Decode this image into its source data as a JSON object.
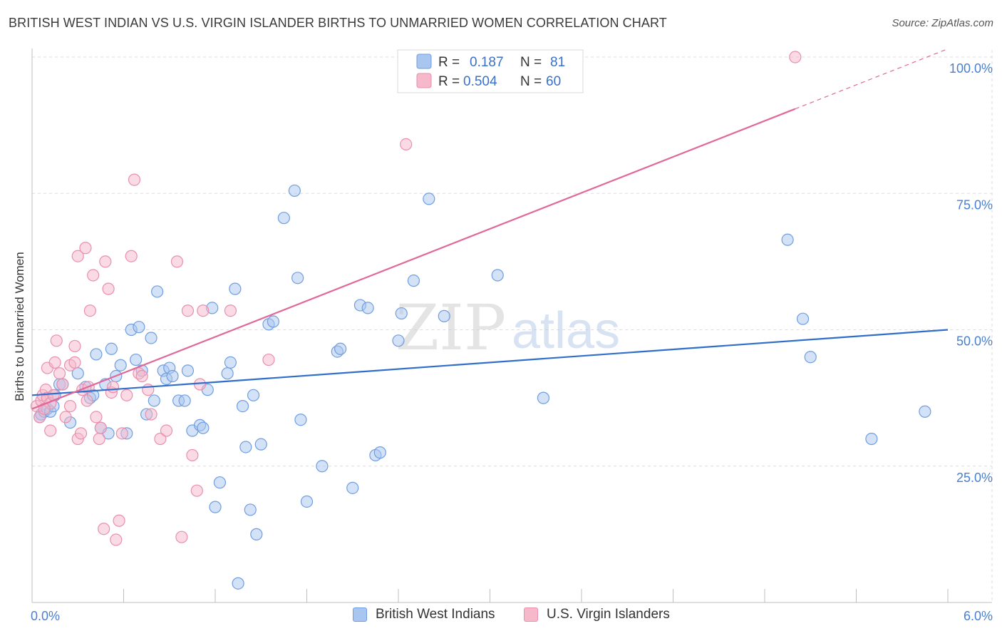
{
  "title": "BRITISH WEST INDIAN VS U.S. VIRGIN ISLANDER BIRTHS TO UNMARRIED WOMEN CORRELATION CHART",
  "source": "Source: ZipAtlas.com",
  "watermark": {
    "zip": "ZIP",
    "atlas": "atlas"
  },
  "colors": {
    "blue_fill": "#a9c6f0",
    "blue_stroke": "#6f9ee0",
    "blue_line": "#2f6fcb",
    "pink_fill": "#f6b8cb",
    "pink_stroke": "#ea8fac",
    "pink_line": "#e0699a",
    "grid": "#dddddd",
    "tick_text": "#4a7fd0"
  },
  "legend": {
    "rows": [
      {
        "r_label": "R =",
        "r_value": "0.187",
        "n_label": "N =",
        "n_value": "81"
      },
      {
        "r_label": "R =",
        "r_value": "0.504",
        "n_label": "N =",
        "n_value": "60"
      }
    ]
  },
  "bottom_legend": [
    "British West Indians",
    "U.S. Virgin Islanders"
  ],
  "chart_data": {
    "type": "scatter",
    "title": "BRITISH WEST INDIAN VS U.S. VIRGIN ISLANDER BIRTHS TO UNMARRIED WOMEN CORRELATION CHART",
    "xlabel": "",
    "ylabel": "Births to Unmarried Women",
    "xlim": [
      0,
      6.0
    ],
    "ylim": [
      0,
      100
    ],
    "x_tick_labels": [
      "0.0%",
      "6.0%"
    ],
    "y_ticks": [
      25,
      50,
      75,
      100
    ],
    "y_tick_labels": [
      "25.0%",
      "50.0%",
      "75.0%",
      "100.0%"
    ],
    "grid": true,
    "legend_position": "top-center",
    "series": [
      {
        "name": "British West Indians",
        "color": "blue",
        "R": 0.187,
        "N": 81,
        "trend": {
          "x": [
            0.0,
            6.0
          ],
          "y": [
            38.0,
            50.0
          ],
          "solid_to": 6.0
        },
        "points": [
          [
            0.05,
            34
          ],
          [
            0.06,
            34.5
          ],
          [
            0.08,
            35
          ],
          [
            0.1,
            35.5
          ],
          [
            0.12,
            35
          ],
          [
            0.14,
            36
          ],
          [
            0.15,
            38
          ],
          [
            0.18,
            40
          ],
          [
            0.2,
            40
          ],
          [
            0.25,
            33
          ],
          [
            0.3,
            42
          ],
          [
            0.35,
            39.5
          ],
          [
            0.38,
            37.5
          ],
          [
            0.4,
            38
          ],
          [
            0.42,
            45.5
          ],
          [
            0.45,
            32
          ],
          [
            0.48,
            40
          ],
          [
            0.5,
            31
          ],
          [
            0.52,
            46.5
          ],
          [
            0.55,
            41.5
          ],
          [
            0.58,
            43.5
          ],
          [
            0.62,
            31
          ],
          [
            0.65,
            50
          ],
          [
            0.68,
            44.5
          ],
          [
            0.7,
            50.5
          ],
          [
            0.72,
            42.5
          ],
          [
            0.75,
            34.5
          ],
          [
            0.78,
            48.5
          ],
          [
            0.8,
            37
          ],
          [
            0.82,
            57
          ],
          [
            0.86,
            42.5
          ],
          [
            0.88,
            41
          ],
          [
            0.9,
            43
          ],
          [
            0.92,
            41.5
          ],
          [
            0.96,
            37
          ],
          [
            1.0,
            37
          ],
          [
            1.02,
            42.5
          ],
          [
            1.05,
            31.5
          ],
          [
            1.1,
            32.5
          ],
          [
            1.12,
            32
          ],
          [
            1.15,
            39
          ],
          [
            1.18,
            54
          ],
          [
            1.2,
            17.5
          ],
          [
            1.23,
            22
          ],
          [
            1.28,
            42
          ],
          [
            1.3,
            44
          ],
          [
            1.33,
            57.5
          ],
          [
            1.35,
            3.5
          ],
          [
            1.38,
            36
          ],
          [
            1.4,
            28.5
          ],
          [
            1.43,
            17
          ],
          [
            1.45,
            38
          ],
          [
            1.47,
            12.5
          ],
          [
            1.5,
            29
          ],
          [
            1.55,
            51
          ],
          [
            1.58,
            51.5
          ],
          [
            1.65,
            70.5
          ],
          [
            1.72,
            75.5
          ],
          [
            1.74,
            59.5
          ],
          [
            1.76,
            33.5
          ],
          [
            1.8,
            18.5
          ],
          [
            1.9,
            25
          ],
          [
            2.0,
            46
          ],
          [
            2.02,
            46.5
          ],
          [
            2.1,
            21
          ],
          [
            2.15,
            54.5
          ],
          [
            2.2,
            54
          ],
          [
            2.25,
            27
          ],
          [
            2.28,
            27.5
          ],
          [
            2.4,
            48
          ],
          [
            2.42,
            53
          ],
          [
            2.5,
            59
          ],
          [
            2.6,
            74
          ],
          [
            2.7,
            52.5
          ],
          [
            3.05,
            60
          ],
          [
            3.35,
            37.5
          ],
          [
            4.95,
            66.5
          ],
          [
            5.05,
            52
          ],
          [
            5.1,
            45
          ],
          [
            5.5,
            30
          ],
          [
            5.85,
            35
          ]
        ]
      },
      {
        "name": "U.S. Virgin Islanders",
        "color": "pink",
        "R": 0.504,
        "N": 60,
        "trend": {
          "x": [
            0.0,
            6.0
          ],
          "y": [
            35.5,
            101.5
          ],
          "solid_to": 5.0
        },
        "points": [
          [
            0.03,
            36
          ],
          [
            0.05,
            34
          ],
          [
            0.06,
            37
          ],
          [
            0.07,
            38
          ],
          [
            0.09,
            39
          ],
          [
            0.1,
            37.5
          ],
          [
            0.1,
            43
          ],
          [
            0.12,
            36.5
          ],
          [
            0.12,
            31.5
          ],
          [
            0.15,
            44
          ],
          [
            0.16,
            48
          ],
          [
            0.18,
            42
          ],
          [
            0.2,
            40
          ],
          [
            0.22,
            34
          ],
          [
            0.25,
            43.5
          ],
          [
            0.25,
            36
          ],
          [
            0.28,
            44
          ],
          [
            0.28,
            47
          ],
          [
            0.3,
            30
          ],
          [
            0.3,
            63.5
          ],
          [
            0.32,
            31
          ],
          [
            0.33,
            39
          ],
          [
            0.35,
            65
          ],
          [
            0.36,
            37
          ],
          [
            0.37,
            39.5
          ],
          [
            0.38,
            53.5
          ],
          [
            0.4,
            60
          ],
          [
            0.42,
            34
          ],
          [
            0.44,
            30
          ],
          [
            0.45,
            32
          ],
          [
            0.47,
            13.5
          ],
          [
            0.48,
            62.5
          ],
          [
            0.5,
            57.5
          ],
          [
            0.52,
            38.5
          ],
          [
            0.53,
            39.5
          ],
          [
            0.55,
            11.5
          ],
          [
            0.57,
            15
          ],
          [
            0.59,
            31
          ],
          [
            0.62,
            38
          ],
          [
            0.65,
            63.5
          ],
          [
            0.67,
            77.5
          ],
          [
            0.7,
            42
          ],
          [
            0.72,
            41.5
          ],
          [
            0.76,
            39
          ],
          [
            0.78,
            34.5
          ],
          [
            0.84,
            30
          ],
          [
            0.88,
            31.5
          ],
          [
            0.95,
            62.5
          ],
          [
            0.98,
            12
          ],
          [
            1.02,
            53.5
          ],
          [
            1.05,
            27
          ],
          [
            1.08,
            20.5
          ],
          [
            1.1,
            40
          ],
          [
            1.12,
            53.5
          ],
          [
            1.3,
            53.5
          ],
          [
            1.55,
            44.5
          ],
          [
            2.45,
            84
          ],
          [
            5.0,
            100
          ],
          [
            0.08,
            35.5
          ],
          [
            0.14,
            38
          ]
        ]
      }
    ]
  }
}
